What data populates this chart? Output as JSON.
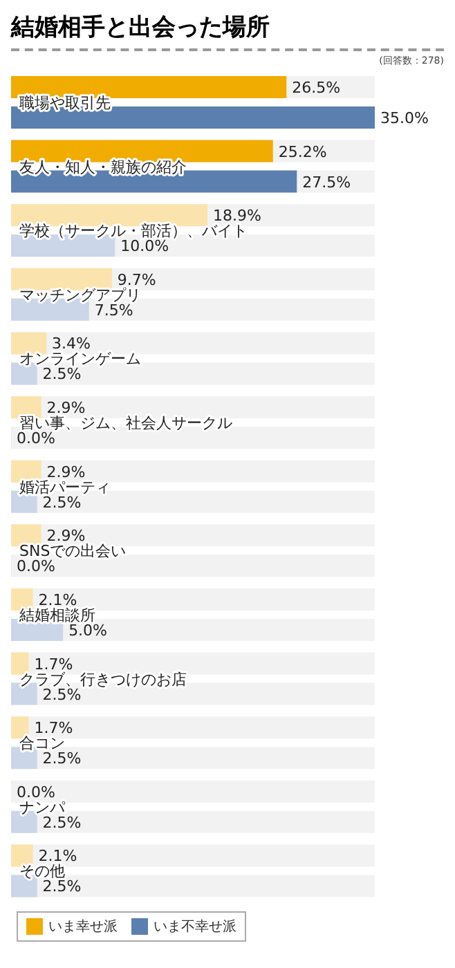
{
  "chart_data": {
    "type": "bar",
    "orientation": "horizontal",
    "title": "結婚相手と出会った場所",
    "annotations": [
      "(回答数：278)"
    ],
    "categories": [
      "職場や取引先",
      "友人・知人・親族の紹介",
      "学校（サークル・部活）、バイト",
      "マッチングアプリ",
      "オンラインゲーム",
      "習い事、ジム、社会人サークル",
      "婚活パーティ",
      "SNSでの出会い",
      "結婚相談所",
      "クラブ、行きつけのお店",
      "合コン",
      "ナンパ",
      "その他"
    ],
    "series": [
      {
        "name": "いま幸せ派",
        "color": "#f0ac00",
        "colors": [
          "#f0ac00",
          "#f0ac00",
          "#fbe3ad",
          "#fbe3ad",
          "#fbe3ad",
          "#fbe3ad",
          "#fbe3ad",
          "#fbe3ad",
          "#fbe3ad",
          "#fbe3ad",
          "#fbe3ad",
          "#fbe3ad",
          "#fbe3ad"
        ],
        "values": [
          26.5,
          25.2,
          18.9,
          9.7,
          3.4,
          2.9,
          2.9,
          2.9,
          2.1,
          1.7,
          1.7,
          0.0,
          2.1
        ],
        "value_labels": [
          "26.5%",
          "25.2%",
          "18.9%",
          "9.7%",
          "3.4%",
          "2.9%",
          "2.9%",
          "2.9%",
          "2.1%",
          "1.7%",
          "1.7%",
          "0.0%",
          "2.1%"
        ]
      },
      {
        "name": "いま不幸せ派",
        "color": "#5b7fae",
        "colors": [
          "#5b7fae",
          "#5b7fae",
          "#cbd6e8",
          "#cbd6e8",
          "#cbd6e8",
          "#cbd6e8",
          "#cbd6e8",
          "#cbd6e8",
          "#cbd6e8",
          "#cbd6e8",
          "#cbd6e8",
          "#cbd6e8",
          "#cbd6e8"
        ],
        "values": [
          35.0,
          27.5,
          10.0,
          7.5,
          2.5,
          0.0,
          2.5,
          0.0,
          5.0,
          2.5,
          2.5,
          2.5,
          2.5
        ],
        "value_labels": [
          "35.0%",
          "27.5%",
          "10.0%",
          "7.5%",
          "2.5%",
          "0.0%",
          "2.5%",
          "0.0%",
          "5.0%",
          "2.5%",
          "2.5%",
          "2.5%",
          "2.5%"
        ]
      }
    ],
    "legend": "bottom left"
  }
}
